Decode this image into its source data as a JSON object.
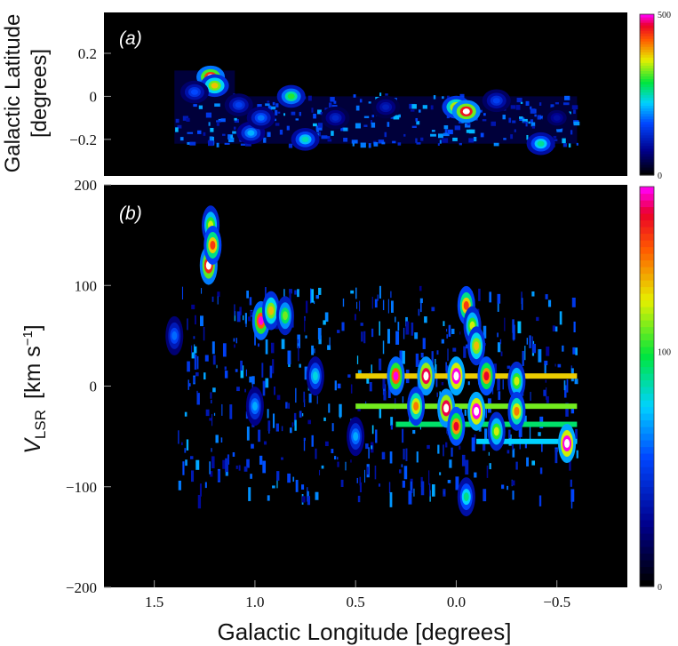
{
  "chart_data": [
    {
      "type": "heatmap",
      "panel_label": "a",
      "xlabel": "Galactic Longitude [degrees]",
      "ylabel_line1": "Galactic Latitude",
      "ylabel_line2": "[degrees]",
      "xlim": [
        1.75,
        -0.85
      ],
      "ylim": [
        -0.37,
        0.39
      ],
      "y_ticks": [
        0.2,
        0,
        -0.2
      ],
      "y_tick_labels": [
        "0.2",
        "0",
        "−0.2"
      ],
      "colorbar": {
        "min": 0,
        "max": 500,
        "labels": [
          "500",
          "0"
        ]
      },
      "survey_region": {
        "l_ranges": [
          [
            1.4,
            0.0,
            -0.22,
            0.0,
            0.12
          ],
          [
            1.1,
            0.0,
            -0.22,
            0.0,
            0.0
          ],
          [
            0.0,
            -0.6,
            -0.22,
            0.0,
            0.0
          ]
        ],
        "note": ""
      },
      "emission_peaks": [
        {
          "l": 1.22,
          "b": 0.09,
          "level": 520
        },
        {
          "l": 1.2,
          "b": 0.05,
          "level": 380
        },
        {
          "l": 1.3,
          "b": 0.02,
          "level": 160
        },
        {
          "l": 1.08,
          "b": -0.04,
          "level": 150
        },
        {
          "l": 1.02,
          "b": -0.17,
          "level": 210
        },
        {
          "l": 0.97,
          "b": -0.1,
          "level": 180
        },
        {
          "l": 0.82,
          "b": 0.0,
          "level": 300
        },
        {
          "l": 0.75,
          "b": -0.2,
          "level": 250
        },
        {
          "l": 0.6,
          "b": -0.1,
          "level": 120
        },
        {
          "l": 0.35,
          "b": -0.05,
          "level": 110
        },
        {
          "l": 0.0,
          "b": -0.05,
          "level": 400
        },
        {
          "l": -0.05,
          "b": -0.07,
          "level": 540
        },
        {
          "l": -0.2,
          "b": -0.02,
          "level": 150
        },
        {
          "l": -0.42,
          "b": -0.22,
          "level": 260
        },
        {
          "l": -0.5,
          "b": -0.1,
          "level": 90
        }
      ]
    },
    {
      "type": "heatmap",
      "panel_label": "b",
      "xlabel": "Galactic Longitude [degrees]",
      "ylabel_main": "V",
      "ylabel_sub": "LSR",
      "ylabel_units": "[km s",
      "ylabel_exp": "−1",
      "ylabel_close": "]",
      "xlim": [
        1.75,
        -0.85
      ],
      "ylim": [
        -200,
        200
      ],
      "x_ticks": [
        1.5,
        1.0,
        0.5,
        0.0,
        -0.5
      ],
      "x_tick_labels": [
        "1.5",
        "1.0",
        "0.5",
        "0.0",
        "−0.5"
      ],
      "y_ticks": [
        200,
        100,
        0,
        -100,
        -200
      ],
      "y_tick_labels": [
        "200",
        "100",
        "0",
        "−100",
        "−200"
      ],
      "colorbar": {
        "min": 0,
        "max": 170,
        "labels": [
          "100",
          "0"
        ],
        "label_values": [
          100,
          0
        ]
      },
      "emission_peaks": [
        {
          "l": 1.22,
          "v": 160,
          "level": 120
        },
        {
          "l": 1.23,
          "v": 120,
          "level": 180
        },
        {
          "l": 1.21,
          "v": 140,
          "level": 150
        },
        {
          "l": 0.97,
          "v": 65,
          "level": 170
        },
        {
          "l": 0.92,
          "v": 75,
          "level": 130
        },
        {
          "l": 0.85,
          "v": 70,
          "level": 110
        },
        {
          "l": 1.4,
          "v": 50,
          "level": 60
        },
        {
          "l": -0.05,
          "v": 80,
          "level": 150
        },
        {
          "l": -0.08,
          "v": 60,
          "level": 120
        },
        {
          "l": -0.1,
          "v": 40,
          "level": 130
        },
        {
          "l": 0.3,
          "v": 10,
          "level": 170
        },
        {
          "l": 0.15,
          "v": 10,
          "level": 190
        },
        {
          "l": 0.0,
          "v": 10,
          "level": 200
        },
        {
          "l": -0.15,
          "v": 10,
          "level": 160
        },
        {
          "l": -0.3,
          "v": 5,
          "level": 120
        },
        {
          "l": 0.05,
          "v": -22,
          "level": 190
        },
        {
          "l": -0.1,
          "v": -25,
          "level": 200
        },
        {
          "l": 0.2,
          "v": -20,
          "level": 140
        },
        {
          "l": -0.3,
          "v": -25,
          "level": 140
        },
        {
          "l": 0.0,
          "v": -40,
          "level": 160
        },
        {
          "l": -0.2,
          "v": -45,
          "level": 120
        },
        {
          "l": -0.55,
          "v": -57,
          "level": 200
        },
        {
          "l": -0.05,
          "v": -110,
          "level": 90
        },
        {
          "l": 0.5,
          "v": -50,
          "level": 70
        },
        {
          "l": 0.7,
          "v": 10,
          "level": 80
        },
        {
          "l": 1.0,
          "v": -20,
          "level": 70
        }
      ]
    }
  ]
}
